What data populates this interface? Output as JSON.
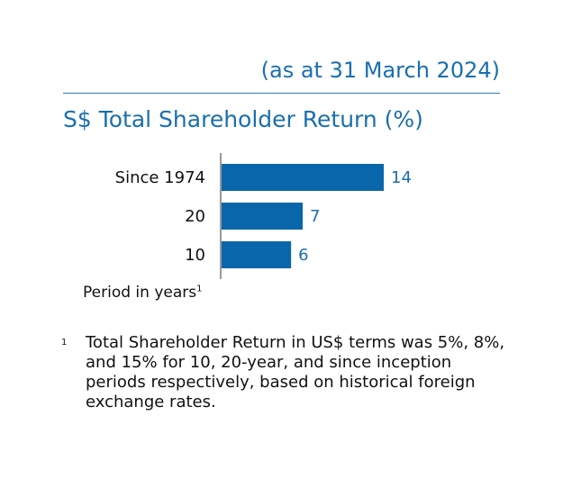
{
  "header": {
    "date_note": "(as at 31 March 2024)"
  },
  "chart_data": {
    "type": "bar",
    "orientation": "horizontal",
    "title": "S$ Total Shareholder Return (%)",
    "xlabel": "Period in years",
    "xlabel_footnote": "1",
    "categories": [
      "Since 1974",
      "20",
      "10"
    ],
    "values": [
      14,
      7,
      6
    ],
    "value_labels": [
      "14",
      "7",
      "6"
    ],
    "xlim": [
      0,
      14
    ],
    "grid": false,
    "colors": {
      "bar": "#0a66aa",
      "value_label": "#1a6fae",
      "title": "#1a6fae"
    }
  },
  "footnote": {
    "marker": "1",
    "text": "Total Shareholder Return in US$ terms was 5%, 8%, and 15% for 10, 20-year, and since inception periods respectively, based on historical foreign exchange rates."
  }
}
